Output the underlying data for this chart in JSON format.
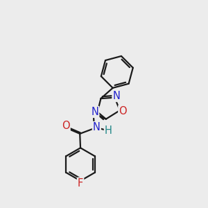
{
  "background_color": "#ececec",
  "bond_color": "#1a1a1a",
  "line_width": 1.6,
  "atom_colors": {
    "N": "#2222cc",
    "O": "#cc2222",
    "F": "#cc2222",
    "H": "#228888",
    "C": "#1a1a1a"
  },
  "font_size": 10.5,
  "dbo": 0.038
}
